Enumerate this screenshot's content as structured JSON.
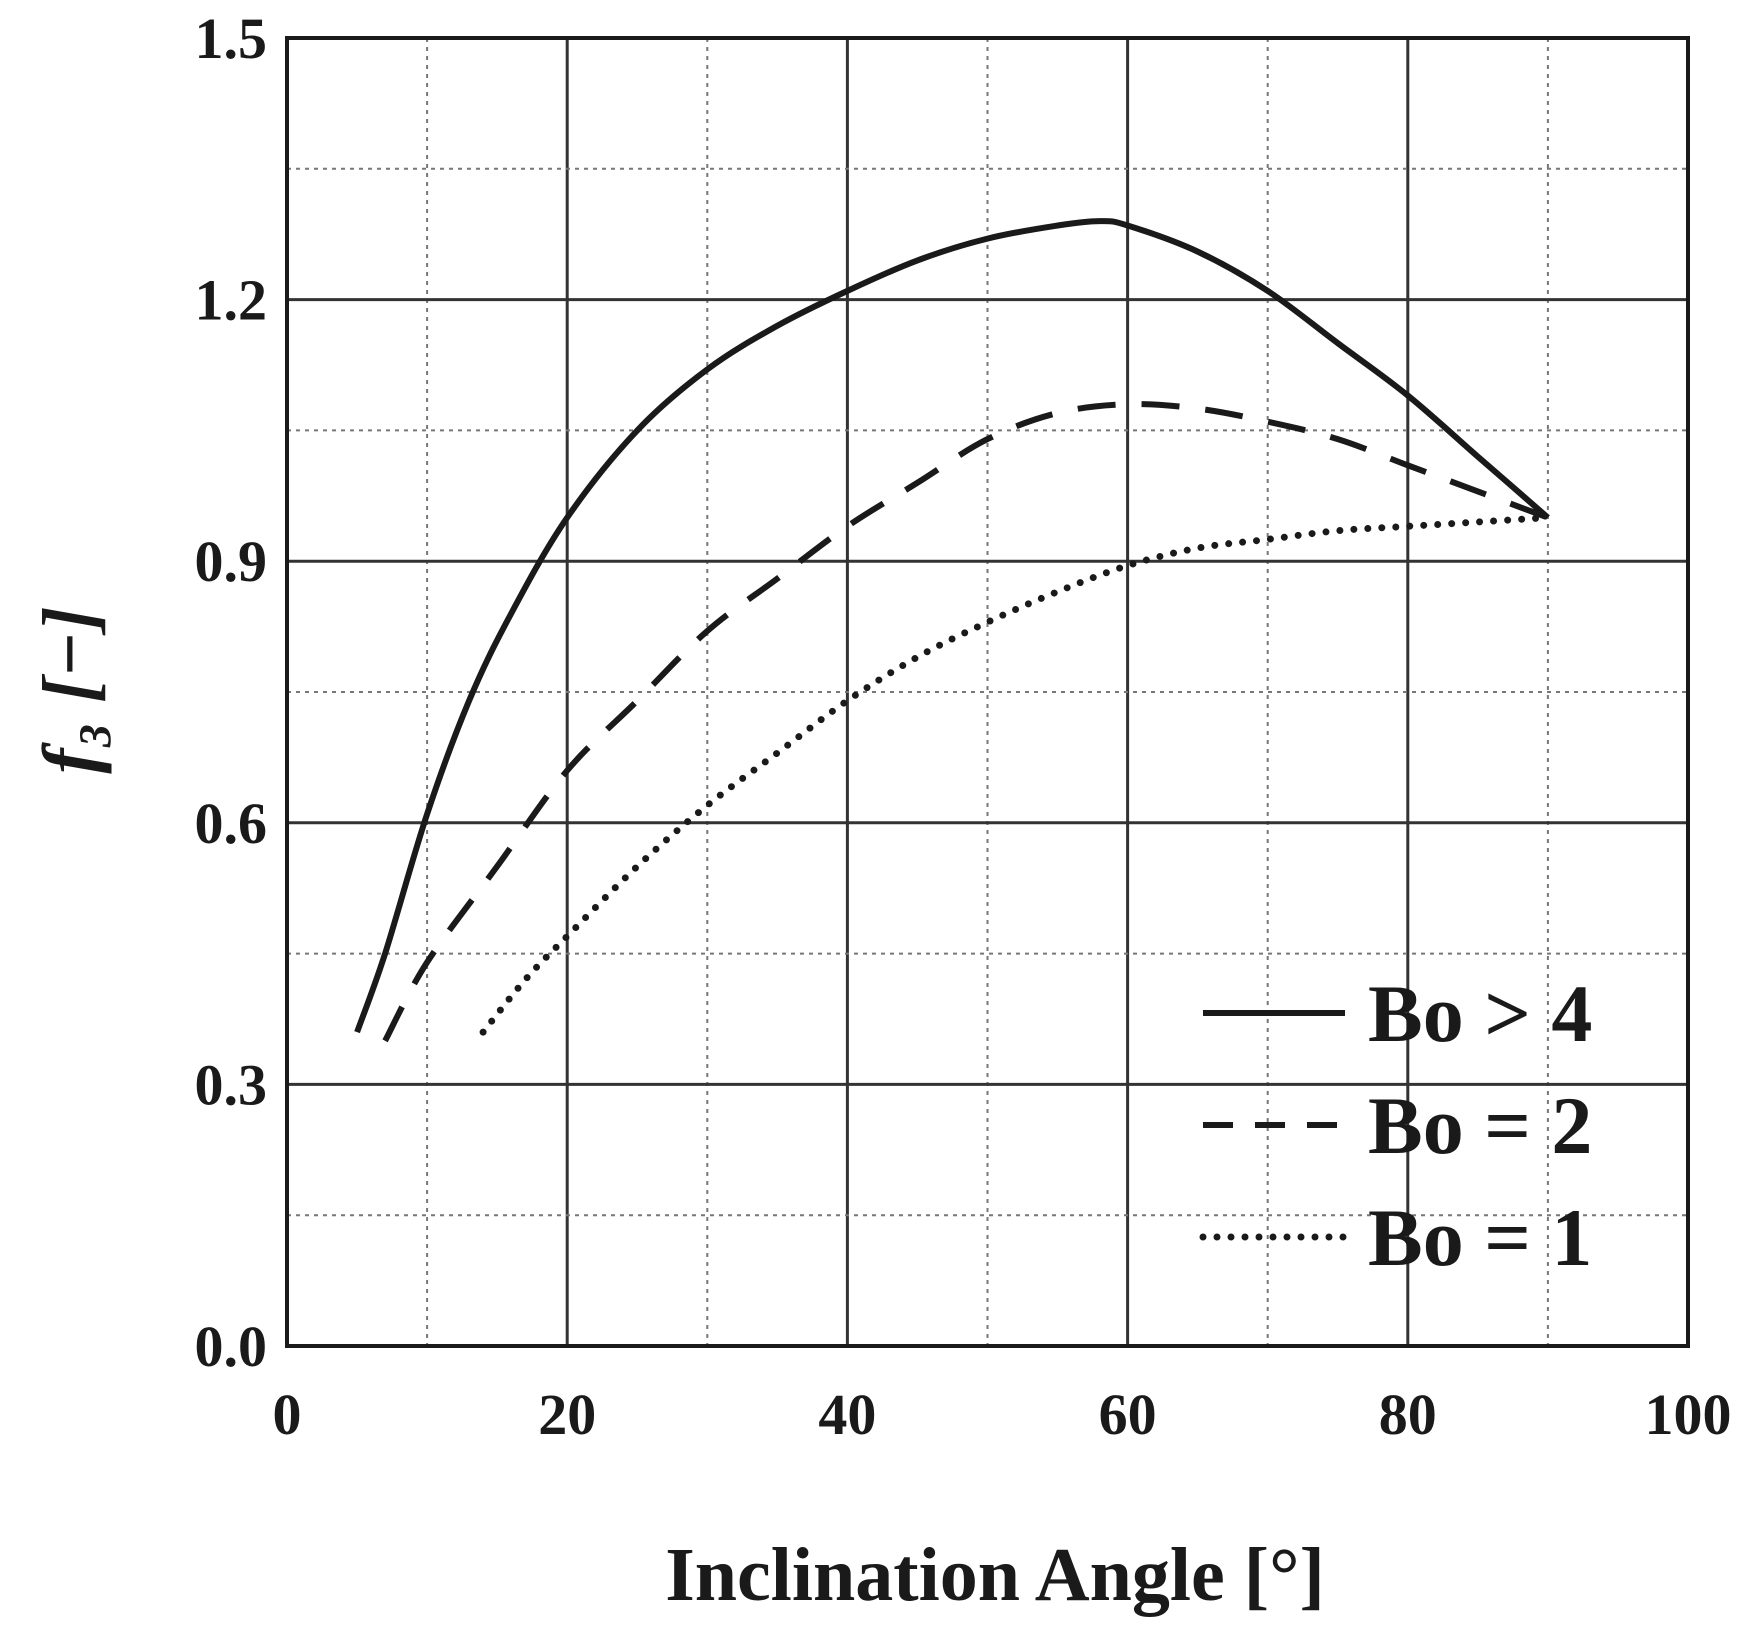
{
  "chart_data": {
    "type": "line",
    "xlabel": "Inclination Angle [°]",
    "ylabel": "f₃ [−]",
    "xlim": [
      0,
      100
    ],
    "ylim": [
      0,
      1.5
    ],
    "x_ticks": [
      "0",
      "20",
      "40",
      "60",
      "80",
      "100"
    ],
    "y_ticks": [
      "0.0",
      "0.3",
      "0.6",
      "0.9",
      "1.2",
      "1.5"
    ],
    "grid": true,
    "legend_position": "bottom-right",
    "series": [
      {
        "name": "Bo > 4",
        "style": "solid",
        "x": [
          5,
          7,
          10,
          13,
          16,
          20,
          25,
          30,
          35,
          40,
          45,
          50,
          55,
          58,
          60,
          65,
          70,
          75,
          80,
          85,
          90
        ],
        "y": [
          0.36,
          0.45,
          0.61,
          0.74,
          0.84,
          0.95,
          1.05,
          1.12,
          1.17,
          1.21,
          1.245,
          1.27,
          1.285,
          1.29,
          1.285,
          1.255,
          1.21,
          1.15,
          1.09,
          1.02,
          0.95
        ]
      },
      {
        "name": "Bo = 2",
        "style": "dashed",
        "x": [
          7,
          10,
          15,
          20,
          25,
          30,
          35,
          40,
          45,
          50,
          55,
          60,
          65,
          70,
          75,
          80,
          85,
          90
        ],
        "y": [
          0.35,
          0.44,
          0.55,
          0.66,
          0.74,
          0.82,
          0.88,
          0.94,
          0.99,
          1.04,
          1.07,
          1.08,
          1.075,
          1.06,
          1.04,
          1.01,
          0.98,
          0.95
        ]
      },
      {
        "name": "Bo = 1",
        "style": "dotted",
        "x": [
          14,
          17,
          20,
          25,
          30,
          35,
          40,
          45,
          50,
          55,
          60,
          65,
          70,
          75,
          80,
          85,
          90
        ],
        "y": [
          0.36,
          0.42,
          0.47,
          0.55,
          0.62,
          0.68,
          0.74,
          0.79,
          0.83,
          0.865,
          0.895,
          0.915,
          0.925,
          0.935,
          0.94,
          0.945,
          0.95
        ]
      }
    ]
  }
}
